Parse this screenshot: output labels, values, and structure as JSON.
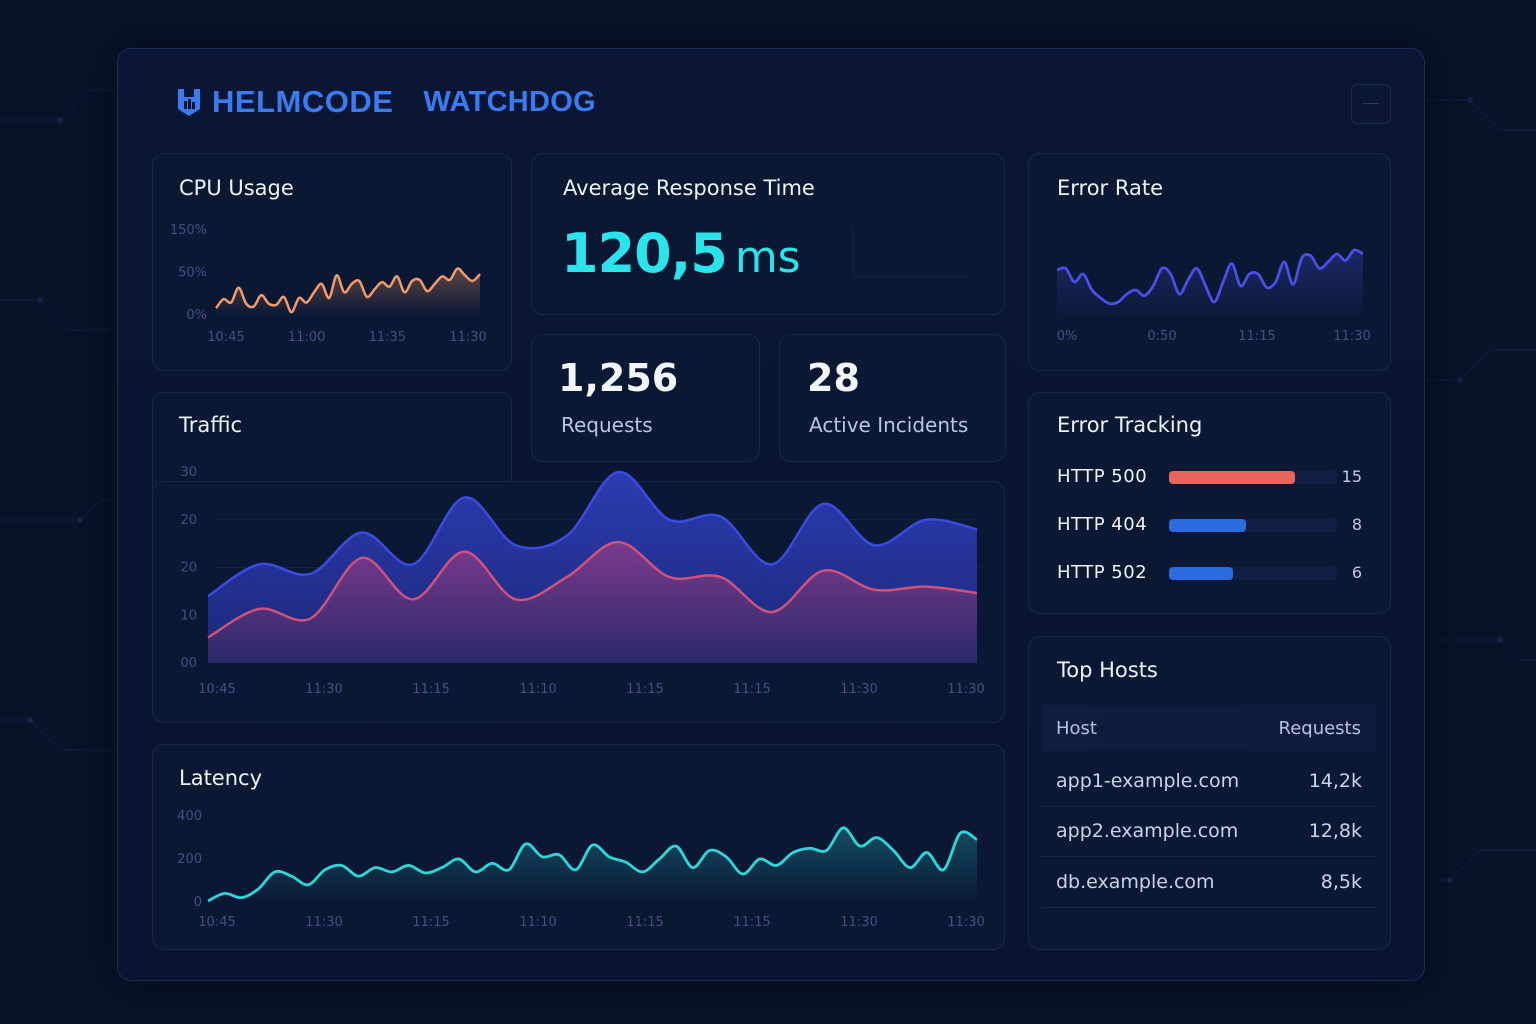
{
  "brand": {
    "name": "HELMCODE",
    "product": "WATCHDOG"
  },
  "colors": {
    "accent": "#3a7bf0",
    "cpu_line": "#f39a6b",
    "error_line": "#4a4fe6",
    "traffic_top": "#3a4be0",
    "traffic_bottom": "#d0527a",
    "latency_line": "#2fd6d9",
    "http500": "#e8665c",
    "http404": "#2a6be0",
    "http502": "#2a6be0"
  },
  "cpu": {
    "title": "CPU Usage",
    "chart_data": {
      "type": "line",
      "y_ticks": [
        "150%",
        "50%",
        "0%"
      ],
      "x_ticks": [
        "10:45",
        "11:00",
        "11:35",
        "11:30"
      ],
      "ylim": [
        0,
        150
      ],
      "values": [
        12,
        28,
        22,
        48,
        20,
        15,
        35,
        20,
        18,
        32,
        5,
        30,
        22,
        40,
        55,
        30,
        70,
        40,
        55,
        60,
        32,
        45,
        58,
        50,
        68,
        40,
        60,
        62,
        42,
        55,
        68,
        62,
        82,
        70,
        60,
        72
      ]
    }
  },
  "response": {
    "title": "Average Response Time",
    "value": "120,5",
    "unit": "ms"
  },
  "requests": {
    "value": "1,256",
    "label": "Requests"
  },
  "incidents": {
    "value": "28",
    "label": "Active Incidents"
  },
  "error_rate": {
    "title": "Error Rate",
    "chart_data": {
      "type": "line",
      "x_ticks": [
        "0%",
        "0:50",
        "11:15",
        "11:30"
      ],
      "values": [
        60,
        62,
        45,
        55,
        35,
        25,
        18,
        20,
        30,
        35,
        28,
        40,
        62,
        55,
        30,
        48,
        62,
        40,
        20,
        45,
        68,
        40,
        55,
        55,
        38,
        45,
        70,
        42,
        75,
        78,
        62,
        70,
        80,
        72,
        85,
        80
      ]
    }
  },
  "traffic": {
    "title": "Traffic",
    "chart_data": {
      "type": "area",
      "y_ticks": [
        "30",
        "20",
        "20",
        "10",
        "00"
      ],
      "x_ticks": [
        "10:45",
        "11:30",
        "11:15",
        "11:10",
        "11:15",
        "11:15",
        "11:30",
        "11:30"
      ],
      "series": [
        {
          "values": [
            10.5,
            15.5,
            14,
            20.5,
            15.5,
            26,
            18.5,
            20,
            30,
            22.5,
            23,
            15.5,
            25,
            18.5,
            22.5,
            21
          ]
        },
        {
          "values": [
            4,
            8.5,
            7,
            16.5,
            10,
            17.5,
            10,
            13.5,
            19,
            13.5,
            13.5,
            8,
            14.5,
            11.5,
            12,
            11
          ]
        }
      ]
    }
  },
  "latency": {
    "title": "Latency",
    "chart_data": {
      "type": "line",
      "y_ticks": [
        "400",
        "200",
        "0"
      ],
      "x_ticks": [
        "10:45",
        "11:30",
        "11:15",
        "11:10",
        "11:15",
        "11:15",
        "11:30",
        "11:30"
      ],
      "ylim": [
        0,
        400
      ],
      "values": [
        5,
        40,
        20,
        60,
        140,
        120,
        80,
        150,
        170,
        120,
        160,
        140,
        170,
        135,
        160,
        200,
        140,
        180,
        150,
        270,
        210,
        220,
        150,
        265,
        210,
        185,
        140,
        200,
        260,
        160,
        240,
        210,
        130,
        200,
        170,
        230,
        250,
        240,
        345,
        260,
        300,
        240,
        160,
        230,
        150,
        320,
        290
      ]
    }
  },
  "errors": {
    "title": "Error Tracking",
    "items": [
      {
        "label": "HTTP 500",
        "count": "15",
        "fraction": 0.75,
        "color": "#e8665c"
      },
      {
        "label": "HTTP 404",
        "count": "8",
        "fraction": 0.46,
        "color": "#2a6be0"
      },
      {
        "label": "HTTP 502",
        "count": "6",
        "fraction": 0.38,
        "color": "#2a6be0"
      }
    ]
  },
  "hosts": {
    "title": "Top Hosts",
    "col_host": "Host",
    "col_requests": "Requests",
    "rows": [
      {
        "host": "app1-example.com",
        "requests": "14,2k"
      },
      {
        "host": "app2.example.com",
        "requests": "12,8k"
      },
      {
        "host": "db.example.com",
        "requests": "8,5k"
      }
    ]
  }
}
